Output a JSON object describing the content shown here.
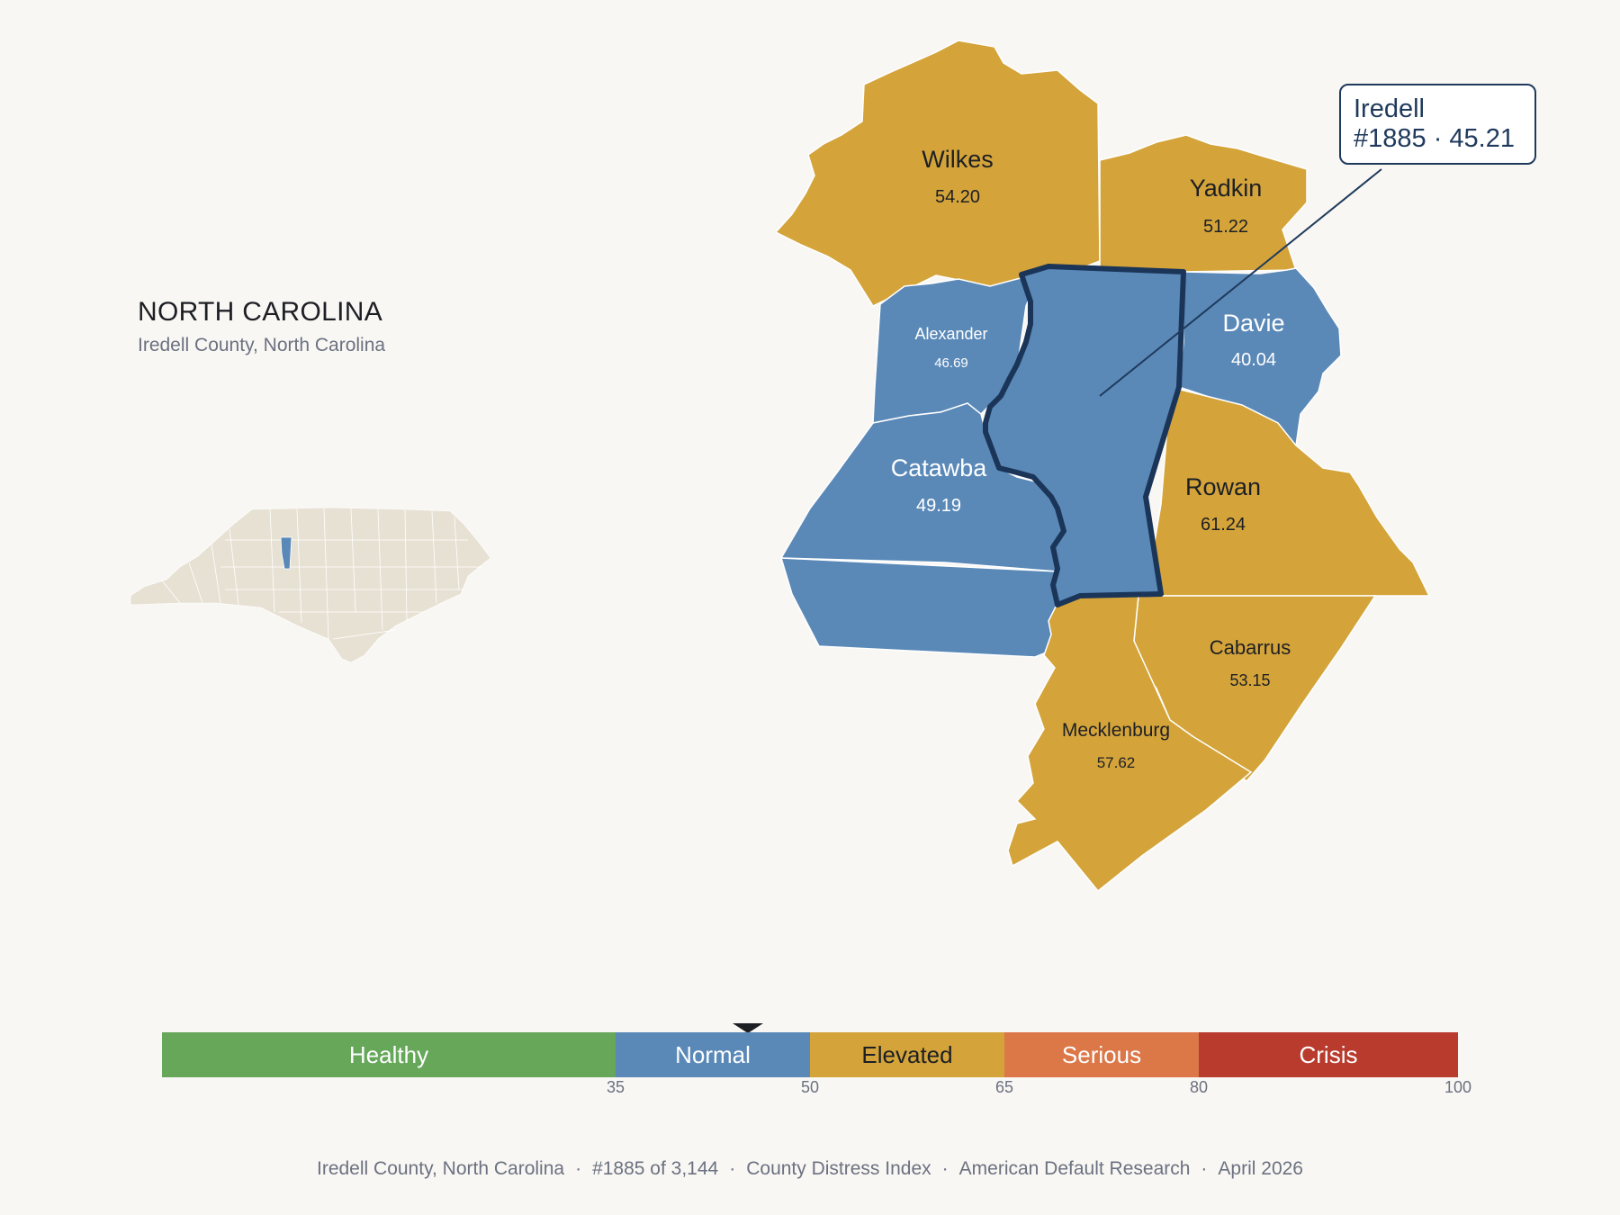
{
  "title": {
    "state": "NORTH CAROLINA",
    "subtitle": "Iredell County, North Carolina"
  },
  "focus_county": {
    "name": "Iredell",
    "rank_score": "#1885 · 45.21",
    "category": "Normal"
  },
  "counties": [
    {
      "name": "Wilkes",
      "value": "54.20",
      "category": "Elevated"
    },
    {
      "name": "Yadkin",
      "value": "51.22",
      "category": "Elevated"
    },
    {
      "name": "Alexander",
      "value": "46.69",
      "category": "Normal"
    },
    {
      "name": "Davie",
      "value": "40.04",
      "category": "Normal"
    },
    {
      "name": "Catawba",
      "value": "49.19",
      "category": "Normal"
    },
    {
      "name": "Rowan",
      "value": "61.24",
      "category": "Elevated"
    },
    {
      "name": "Cabarrus",
      "value": "53.15",
      "category": "Elevated"
    },
    {
      "name": "Mecklenburg",
      "value": "57.62",
      "category": "Elevated"
    }
  ],
  "legend": {
    "segments": [
      {
        "label": "Healthy",
        "from": 0,
        "to": 35,
        "color": "#66a75a"
      },
      {
        "label": "Normal",
        "from": 35,
        "to": 50,
        "color": "#5a89b8"
      },
      {
        "label": "Elevated",
        "from": 50,
        "to": 65,
        "color": "#d4a43a"
      },
      {
        "label": "Serious",
        "from": 65,
        "to": 80,
        "color": "#dc7748"
      },
      {
        "label": "Crisis",
        "from": 80,
        "to": 100,
        "color": "#b93b2e"
      }
    ],
    "ticks": [
      "35",
      "50",
      "65",
      "80",
      "100"
    ],
    "marker_value": 45.21
  },
  "colors": {
    "normal": "#5a89b8",
    "elevated": "#d4a43a",
    "inset_land": "#e7e1d3",
    "focus_outline": "#1b3558"
  },
  "footer": {
    "county": "Iredell County, North Carolina",
    "rank": "#1885 of 3,144",
    "index": "County Distress Index",
    "source": "American Default Research",
    "date": "April 2026"
  }
}
